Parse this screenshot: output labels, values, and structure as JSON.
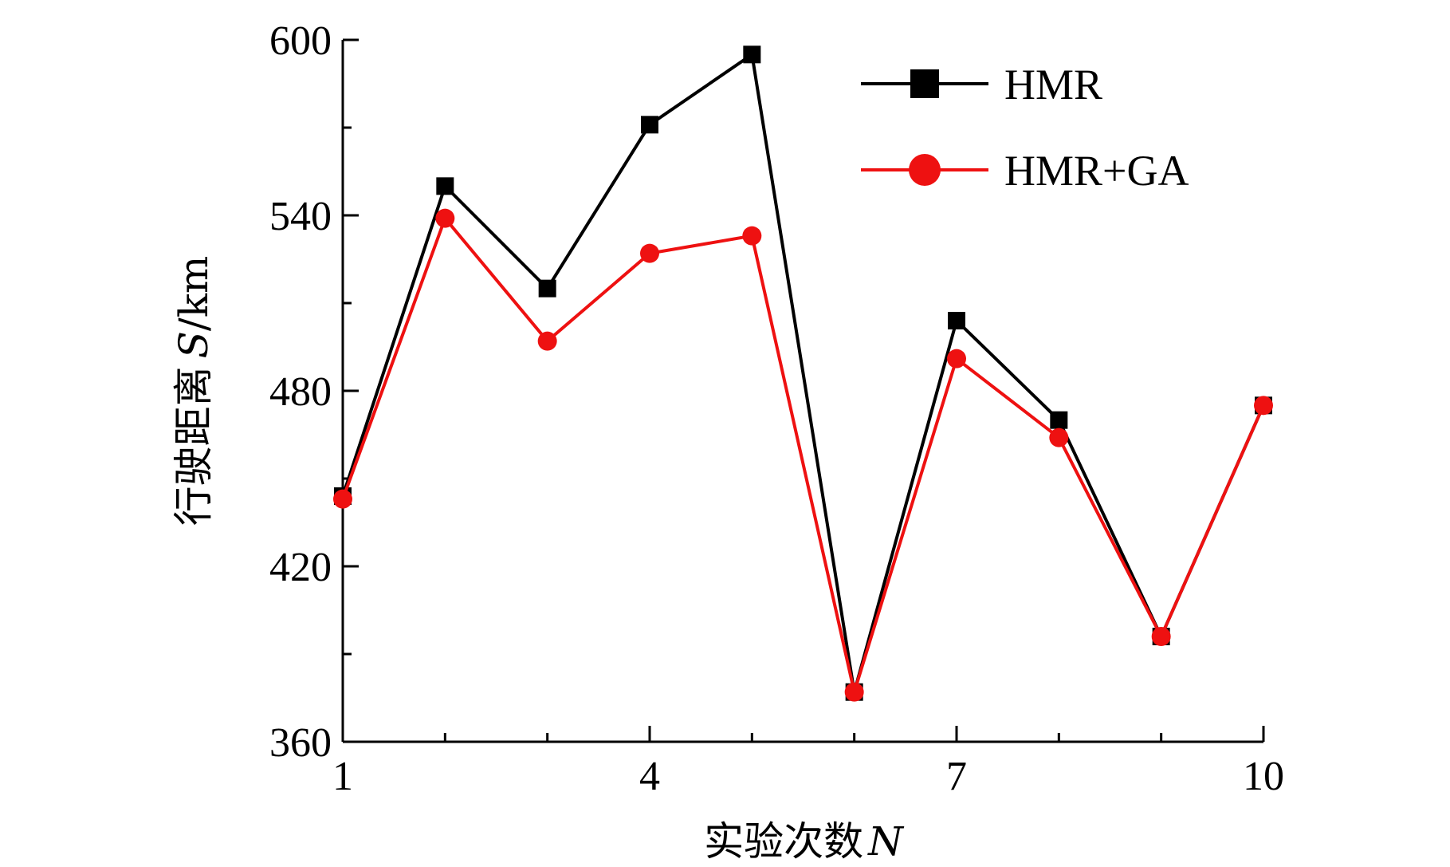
{
  "chart_data": {
    "type": "line",
    "xlabel": "实验次数 N",
    "xlabel_parts": {
      "text": "实验次数",
      "var": "N"
    },
    "ylabel": "行驶距离 S/km",
    "ylabel_parts": {
      "text": "行驶距离",
      "var": "S",
      "unit": "/km"
    },
    "x": [
      1,
      2,
      3,
      4,
      5,
      6,
      7,
      8,
      9,
      10
    ],
    "xlim": [
      1,
      10
    ],
    "ylim": [
      360,
      600
    ],
    "xticks": [
      1,
      4,
      7,
      10
    ],
    "xticks_minor": [
      2,
      3,
      5,
      6,
      8,
      9
    ],
    "yticks": [
      360,
      420,
      480,
      540,
      600
    ],
    "yticks_minor": [
      390,
      450,
      510,
      570
    ],
    "legend_position": "top-right",
    "grid": false,
    "series": [
      {
        "name": "HMR",
        "color": "#000000",
        "marker": "square",
        "values": [
          444,
          550,
          515,
          571,
          595,
          377,
          504,
          470,
          396,
          475
        ]
      },
      {
        "name": "HMR+GA",
        "color": "#ee1111",
        "marker": "circle",
        "values": [
          443,
          539,
          497,
          527,
          533,
          377,
          491,
          464,
          396,
          475
        ]
      }
    ]
  }
}
